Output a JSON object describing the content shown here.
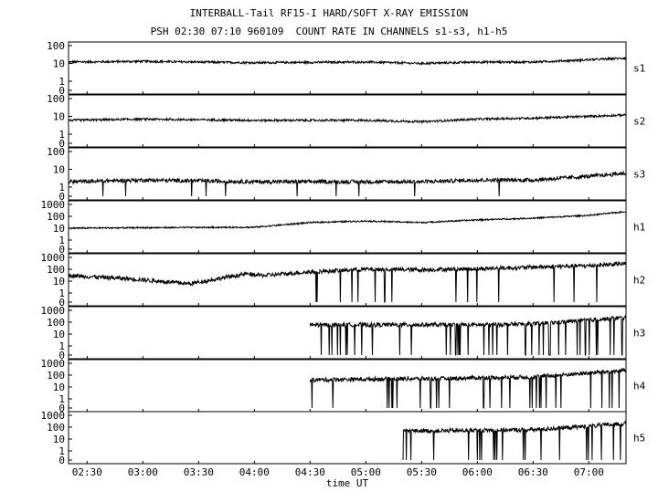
{
  "header": {
    "title": "INTERBALL-Tail RF15-I HARD/SOFT X-RAY EMISSION",
    "subtitle": "PSH 02:30 07:10 960109  COUNT RATE IN CHANNELS s1-s3, h1-h5"
  },
  "colors": {
    "background": "#ffffff",
    "ink": "#000000"
  },
  "chart_data": {
    "type": "line",
    "title": "INTERBALL-Tail RF15-I HARD/SOFT X-RAY EMISSION",
    "subtitle": "PSH 02:30 07:10 960109  COUNT RATE IN CHANNELS s1-s3, h1-h5",
    "xlabel": "time UT",
    "x_ticks": [
      "02:30",
      "03:00",
      "03:30",
      "04:00",
      "04:30",
      "05:00",
      "05:30",
      "06:00",
      "06:30",
      "07:00"
    ],
    "xlim": [
      "02:20",
      "07:20"
    ],
    "yscale": "log",
    "panels": [
      {
        "name": "s1",
        "y_ticks": [
          "100",
          "10",
          "1",
          "0"
        ],
        "ylim": [
          0,
          100
        ],
        "series": [
          {
            "name": "s1",
            "x": [
              "02:20",
              "03:00",
              "04:00",
              "05:00",
              "05:30",
              "06:00",
              "06:30",
              "07:00",
              "07:20"
            ],
            "values": [
              12,
              13,
              11,
              12,
              10,
              12,
              12,
              16,
              20
            ]
          }
        ]
      },
      {
        "name": "s2",
        "y_ticks": [
          "100",
          "10",
          "1",
          "0"
        ],
        "ylim": [
          0,
          100
        ],
        "series": [
          {
            "name": "s2",
            "x": [
              "02:20",
              "03:00",
              "04:00",
              "05:00",
              "05:30",
              "06:00",
              "06:30",
              "07:00",
              "07:20"
            ],
            "values": [
              6,
              7,
              6,
              6,
              5,
              7,
              8,
              10,
              12
            ]
          }
        ]
      },
      {
        "name": "s3",
        "y_ticks": [
          "100",
          "10",
          "1",
          "0"
        ],
        "ylim": [
          0,
          100
        ],
        "series": [
          {
            "name": "s3",
            "x": [
              "02:20",
              "03:00",
              "04:00",
              "05:00",
              "05:30",
              "06:00",
              "06:30",
              "07:00",
              "07:20"
            ],
            "values": [
              2,
              2.5,
              2,
              2,
              2,
              2.5,
              2.5,
              4,
              6
            ]
          }
        ]
      },
      {
        "name": "h1",
        "y_ticks": [
          "1000",
          "100",
          "10",
          "1",
          "0"
        ],
        "ylim": [
          0,
          1000
        ],
        "series": [
          {
            "name": "h1",
            "x": [
              "02:20",
              "03:00",
              "04:00",
              "04:30",
              "05:00",
              "05:30",
              "06:00",
              "06:30",
              "07:00",
              "07:20"
            ],
            "values": [
              10,
              11,
              12,
              30,
              40,
              30,
              50,
              70,
              120,
              250
            ]
          }
        ]
      },
      {
        "name": "h2",
        "y_ticks": [
          "1000",
          "100",
          "10",
          "1",
          "0"
        ],
        "ylim": [
          0,
          1000
        ],
        "series": [
          {
            "name": "h2",
            "x": [
              "02:20",
              "02:55",
              "03:25",
              "03:55",
              "04:05",
              "04:30",
              "05:00",
              "05:30",
              "06:00",
              "06:30",
              "07:00",
              "07:20"
            ],
            "values": [
              30,
              15,
              6,
              40,
              30,
              60,
              100,
              90,
              110,
              150,
              200,
              300
            ]
          }
        ]
      },
      {
        "name": "h3",
        "y_ticks": [
          "1000",
          "100",
          "10",
          "1",
          "0"
        ],
        "ylim": [
          0,
          1000
        ],
        "series": [
          {
            "name": "h3",
            "x": [
              "04:30",
              "04:45",
              "05:00",
              "05:30",
              "05:50",
              "06:00",
              "06:30",
              "07:00",
              "07:20"
            ],
            "values": [
              60,
              60,
              60,
              60,
              60,
              60,
              70,
              150,
              250
            ]
          }
        ]
      },
      {
        "name": "h4",
        "y_ticks": [
          "1000",
          "100",
          "10",
          "1",
          "0"
        ],
        "ylim": [
          0,
          1000
        ],
        "series": [
          {
            "name": "h4",
            "x": [
              "04:30",
              "05:20",
              "05:40",
              "06:00",
              "06:30",
              "07:00",
              "07:20"
            ],
            "values": [
              40,
              50,
              50,
              60,
              70,
              150,
              250
            ]
          }
        ]
      },
      {
        "name": "h5",
        "y_ticks": [
          "1000",
          "100",
          "10",
          "1",
          "0"
        ],
        "ylim": [
          0,
          1000
        ],
        "series": [
          {
            "name": "h5",
            "x": [
              "05:20",
              "05:30",
              "05:50",
              "06:00",
              "06:30",
              "07:00",
              "07:20"
            ],
            "values": [
              50,
              50,
              50,
              55,
              60,
              120,
              200
            ]
          }
        ]
      }
    ]
  }
}
